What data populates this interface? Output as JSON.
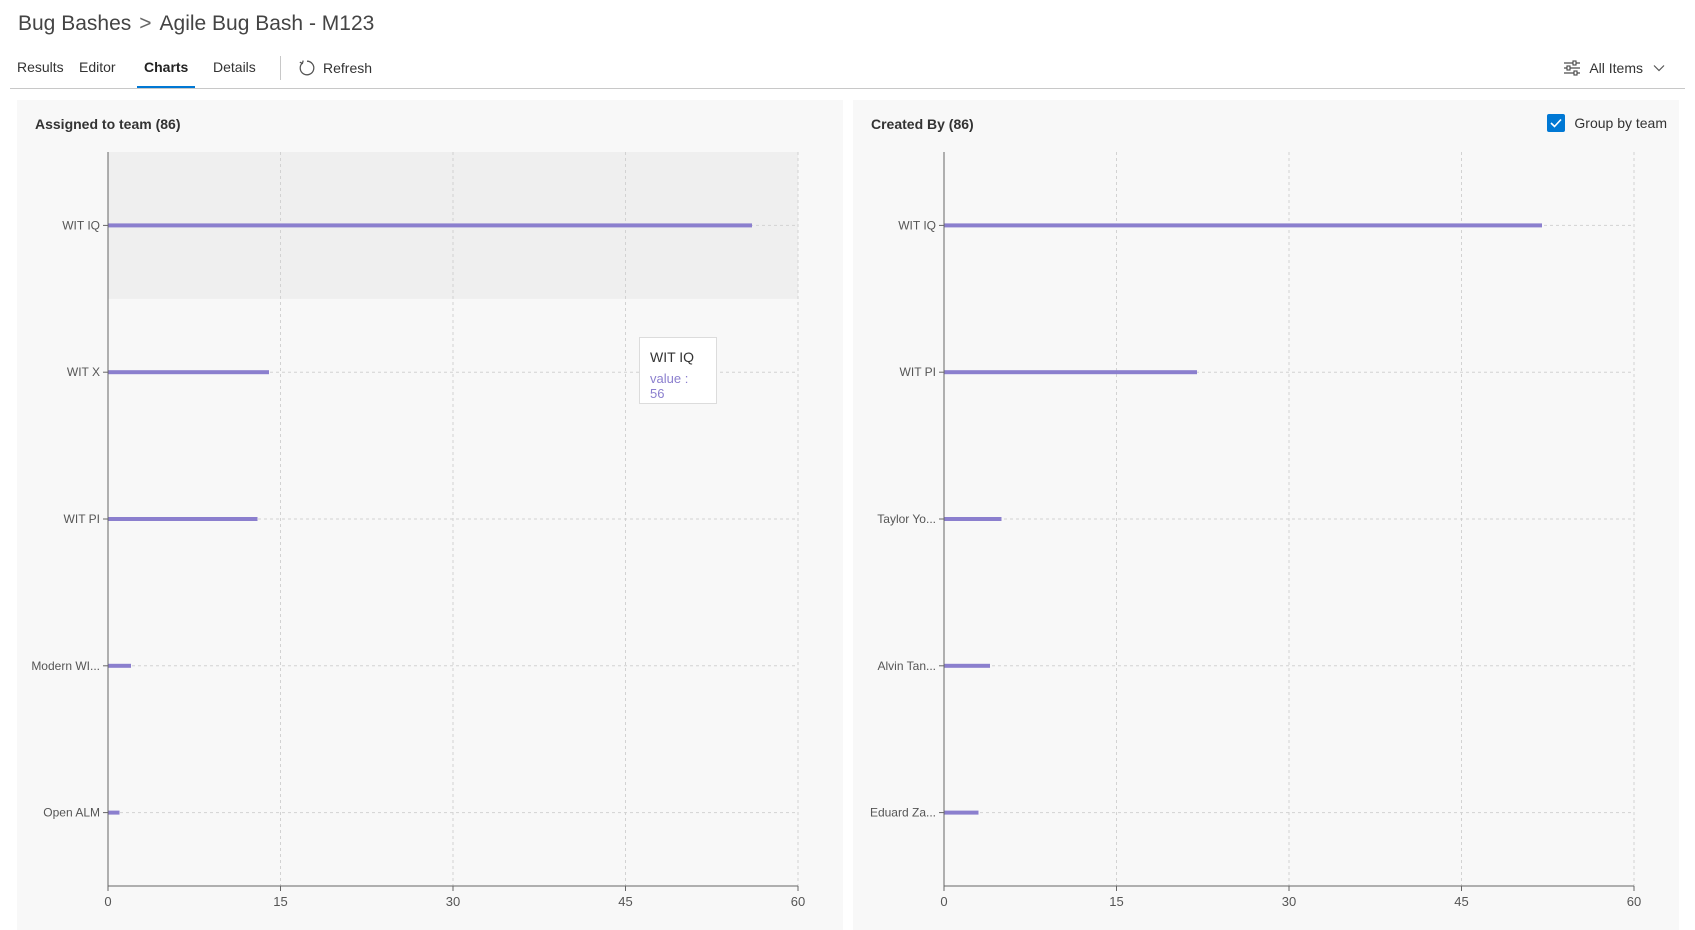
{
  "breadcrumb": {
    "parent": "Bug Bashes",
    "separator": ">",
    "current": "Agile Bug Bash - M123"
  },
  "tabs": {
    "results": "Results",
    "editor": "Editor",
    "charts": "Charts",
    "details": "Details",
    "active": "Charts"
  },
  "toolbar": {
    "refresh_label": "Refresh",
    "refresh_icon": "refresh-icon",
    "filter_label": "All Items",
    "filter_icon": "filter-settings-icon"
  },
  "colors": {
    "bar": "#8b7fce",
    "accent": "#0078d4",
    "panel_bg": "#f8f8f8",
    "highlight": "#efefef"
  },
  "left_panel": {
    "title": "Assigned to team (86)"
  },
  "right_panel": {
    "title": "Created By (86)",
    "group_by_label": "Group by team",
    "group_by_checked": true
  },
  "tooltip": {
    "title": "WIT IQ",
    "label": "value",
    "value": 56
  },
  "chart_data": [
    {
      "type": "bar",
      "orientation": "horizontal",
      "title": "Assigned to team (86)",
      "categories": [
        "WIT IQ",
        "WIT X",
        "WIT PI",
        "Modern WI...",
        "Open ALM"
      ],
      "values": [
        56,
        14,
        13,
        2,
        1
      ],
      "xlim": [
        0,
        60
      ],
      "xticks": [
        "0",
        "15",
        "30",
        "45",
        "60"
      ],
      "grid": true,
      "highlighted_category": "WIT IQ"
    },
    {
      "type": "bar",
      "orientation": "horizontal",
      "title": "Created By (86)",
      "categories": [
        "WIT IQ",
        "WIT PI",
        "Taylor Yo...",
        "Alvin Tan...",
        "Eduard Za..."
      ],
      "values": [
        52,
        22,
        5,
        4,
        3
      ],
      "xlim": [
        0,
        60
      ],
      "xticks": [
        "0",
        "15",
        "30",
        "45",
        "60"
      ],
      "grid": true
    }
  ]
}
